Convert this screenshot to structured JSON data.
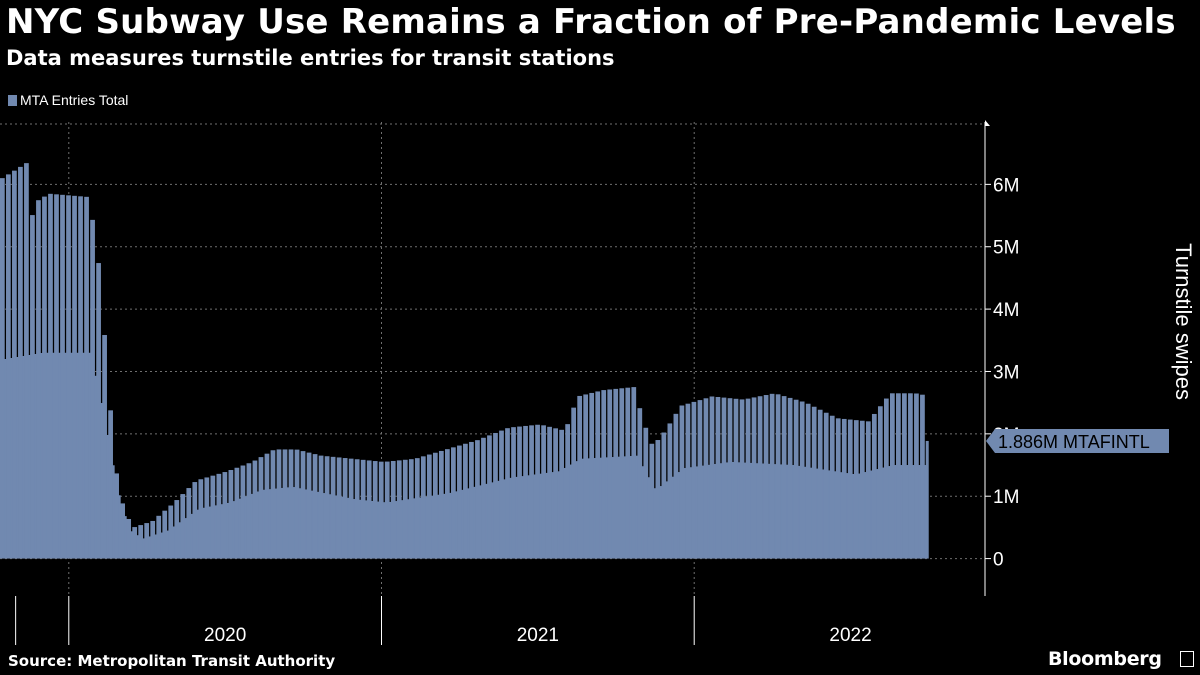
{
  "chart_data": {
    "type": "area",
    "title": "NYC Subway Use Remains a Fraction of Pre-Pandemic Levels",
    "subtitle": "Data measures turnstile entries for transit stations",
    "legend": [
      {
        "name": "MTA Entries Total",
        "color": "#7189b0"
      }
    ],
    "ylabel": "Turnstile swipes",
    "ylim": [
      -600000,
      7000000
    ],
    "yticks": [
      0,
      1000000,
      2000000,
      3000000,
      4000000,
      5000000,
      6000000
    ],
    "ytick_labels": [
      "0",
      "1M",
      "2M",
      "3M",
      "4M",
      "5M",
      "6M"
    ],
    "xlim": [
      2019.78,
      2022.85
    ],
    "year_boundaries": [
      2020.0,
      2021.0,
      2022.0
    ],
    "xtick_labels": [
      {
        "label": "2020",
        "x": 2020.5
      },
      {
        "label": "2021",
        "x": 2021.5
      },
      {
        "label": "2022",
        "x": 2022.5
      }
    ],
    "last_value": 1886000,
    "last_label": "1.886M MTAFINTL",
    "weekday_envelope": [
      [
        2019.78,
        6.1
      ],
      [
        2019.86,
        6.35
      ],
      [
        2019.87,
        5.2
      ],
      [
        2019.88,
        5.7
      ],
      [
        2019.93,
        5.85
      ],
      [
        2020.05,
        5.8
      ],
      [
        2020.08,
        5.2
      ],
      [
        2020.11,
        3.4
      ],
      [
        2020.14,
        1.5
      ],
      [
        2020.17,
        0.75
      ],
      [
        2020.2,
        0.5
      ],
      [
        2020.26,
        0.6
      ],
      [
        2020.33,
        0.9
      ],
      [
        2020.4,
        1.25
      ],
      [
        2020.5,
        1.4
      ],
      [
        2020.58,
        1.55
      ],
      [
        2020.65,
        1.75
      ],
      [
        2020.72,
        1.75
      ],
      [
        2020.8,
        1.65
      ],
      [
        2020.9,
        1.6
      ],
      [
        2021.0,
        1.55
      ],
      [
        2021.1,
        1.6
      ],
      [
        2021.2,
        1.75
      ],
      [
        2021.3,
        1.9
      ],
      [
        2021.4,
        2.1
      ],
      [
        2021.5,
        2.15
      ],
      [
        2021.58,
        2.05
      ],
      [
        2021.62,
        2.6
      ],
      [
        2021.7,
        2.7
      ],
      [
        2021.8,
        2.75
      ],
      [
        2021.83,
        2.2
      ],
      [
        2021.86,
        1.8
      ],
      [
        2021.9,
        2.05
      ],
      [
        2021.95,
        2.45
      ],
      [
        2022.05,
        2.6
      ],
      [
        2022.15,
        2.55
      ],
      [
        2022.25,
        2.65
      ],
      [
        2022.35,
        2.5
      ],
      [
        2022.45,
        2.25
      ],
      [
        2022.55,
        2.2
      ],
      [
        2022.62,
        2.65
      ],
      [
        2022.7,
        2.65
      ],
      [
        2022.75,
        2.6
      ]
    ],
    "weekend_envelope": [
      [
        2019.78,
        3.2
      ],
      [
        2019.9,
        3.3
      ],
      [
        2020.05,
        3.3
      ],
      [
        2020.08,
        2.7
      ],
      [
        2020.11,
        1.9
      ],
      [
        2020.15,
        0.9
      ],
      [
        2020.18,
        0.45
      ],
      [
        2020.22,
        0.32
      ],
      [
        2020.3,
        0.45
      ],
      [
        2020.4,
        0.8
      ],
      [
        2020.5,
        0.9
      ],
      [
        2020.6,
        1.1
      ],
      [
        2020.7,
        1.15
      ],
      [
        2020.8,
        1.05
      ],
      [
        2020.9,
        0.95
      ],
      [
        2021.0,
        0.9
      ],
      [
        2021.2,
        1.05
      ],
      [
        2021.4,
        1.3
      ],
      [
        2021.55,
        1.4
      ],
      [
        2021.62,
        1.6
      ],
      [
        2021.8,
        1.65
      ],
      [
        2021.86,
        1.1
      ],
      [
        2021.95,
        1.45
      ],
      [
        2022.1,
        1.55
      ],
      [
        2022.3,
        1.5
      ],
      [
        2022.5,
        1.35
      ],
      [
        2022.62,
        1.5
      ],
      [
        2022.75,
        1.5
      ]
    ]
  },
  "source": "Source: Metropolitan Transit Authority",
  "brand": "Bloomberg",
  "colors": {
    "series": "#7189b0",
    "background": "#000000",
    "grid": "#6f6f6f",
    "text": "#ffffff"
  }
}
